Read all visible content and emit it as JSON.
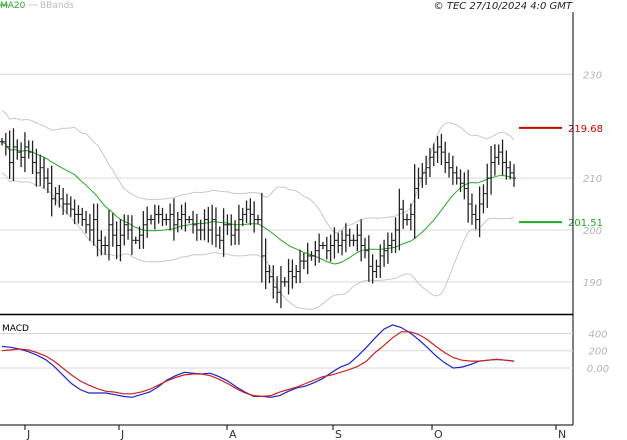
{
  "header": {
    "legend": [
      {
        "label": "MA20",
        "color": "#22aa22"
      },
      {
        "label": "BBands",
        "color": "#bbbbbb"
      }
    ],
    "copyright": "© TEC 27/10/2024 4:0 GMT"
  },
  "colors": {
    "candle": "#222222",
    "ma20": "#22aa22",
    "bbands": "#c8c8c8",
    "resistance": "#cc0000",
    "support": "#22aa22",
    "macd_line": "#2222cc",
    "macd_signal": "#cc2222",
    "grid": "#d9d9d9"
  },
  "chart_data": [
    {
      "type": "candlestick",
      "x_ticks": [
        "J",
        "J",
        "A",
        "S",
        "O",
        "N"
      ],
      "y_ticks": [
        "230",
        "210",
        "200",
        "190"
      ],
      "y_tick_values": [
        230,
        210,
        200,
        190
      ],
      "ylim": [
        184,
        242
      ],
      "grid": true,
      "overlays": [
        "MA20",
        "BBands"
      ],
      "levels": [
        {
          "name": "resistance",
          "value": 219.68,
          "label": "219.68"
        },
        {
          "name": "support",
          "value": 201.51,
          "label": "201.51"
        }
      ],
      "close": [
        217,
        216,
        213,
        216,
        215,
        214,
        216,
        215,
        213,
        211,
        212,
        210,
        209,
        206,
        207,
        206,
        205,
        205,
        204,
        203,
        203,
        202,
        201,
        200,
        202,
        198,
        197,
        197,
        201,
        199,
        197,
        199,
        201,
        200,
        198,
        198,
        199,
        201,
        202,
        202,
        203,
        203,
        202,
        202,
        203,
        201,
        202,
        203,
        202,
        202,
        201,
        200,
        200,
        202,
        200,
        202,
        199,
        198,
        201,
        201,
        199,
        200,
        202,
        203,
        204,
        203,
        202,
        202,
        195,
        192,
        191,
        189,
        188,
        190,
        190,
        192,
        191,
        192,
        194,
        194,
        195,
        195,
        196,
        197,
        197,
        196,
        197,
        198,
        197,
        198,
        199,
        198,
        198,
        199,
        197,
        196,
        193,
        192,
        193,
        195,
        196,
        197,
        198,
        200,
        204,
        202,
        202,
        203,
        208,
        210,
        211,
        212,
        214,
        215,
        216,
        215,
        213,
        212,
        211,
        210,
        209,
        208,
        205,
        203,
        202,
        205,
        207,
        210,
        213,
        214,
        215,
        213,
        212,
        211,
        210
      ]
    },
    {
      "type": "line",
      "title": "MACD",
      "y_ticks": [
        "400",
        "200",
        "0.00"
      ],
      "y_tick_values": [
        4,
        2,
        0
      ],
      "ylim": [
        -6.5,
        5.8
      ],
      "series": [
        {
          "role": "macd",
          "values": [
            2.5,
            2.4,
            2.2,
            1.9,
            1.5,
            1.0,
            0.2,
            -0.8,
            -1.8,
            -2.5,
            -2.9,
            -2.9,
            -2.9,
            -3.1,
            -3.3,
            -3.4,
            -3.1,
            -2.8,
            -2.2,
            -1.4,
            -0.9,
            -0.5,
            -0.6,
            -0.7,
            -0.6,
            -1.0,
            -1.5,
            -2.2,
            -2.8,
            -3.3,
            -3.3,
            -3.4,
            -3.2,
            -2.7,
            -2.3,
            -2.1,
            -1.7,
            -1.2,
            -0.5,
            0.1,
            0.5,
            1.4,
            2.4,
            3.5,
            4.5,
            5.0,
            4.7,
            4.1,
            3.3,
            2.4,
            1.4,
            0.6,
            0.0,
            0.1,
            0.4,
            0.8,
            0.9,
            1.0,
            0.9,
            0.8
          ]
        },
        {
          "role": "signal",
          "values": [
            2.0,
            2.1,
            2.2,
            2.1,
            1.8,
            1.4,
            0.8,
            0.0,
            -0.8,
            -1.5,
            -2.0,
            -2.4,
            -2.7,
            -2.8,
            -3.0,
            -3.0,
            -2.8,
            -2.5,
            -2.0,
            -1.5,
            -1.1,
            -0.8,
            -0.7,
            -0.7,
            -0.9,
            -1.3,
            -1.8,
            -2.4,
            -2.9,
            -3.2,
            -3.3,
            -3.2,
            -2.8,
            -2.5,
            -2.2,
            -1.8,
            -1.4,
            -1.0,
            -0.8,
            -0.5,
            -0.2,
            0.2,
            0.8,
            1.8,
            2.6,
            3.5,
            4.2,
            4.2,
            3.9,
            3.3,
            2.5,
            1.8,
            1.2,
            0.9,
            0.8,
            0.8,
            0.9,
            1.0,
            0.9,
            0.8
          ]
        }
      ]
    }
  ]
}
